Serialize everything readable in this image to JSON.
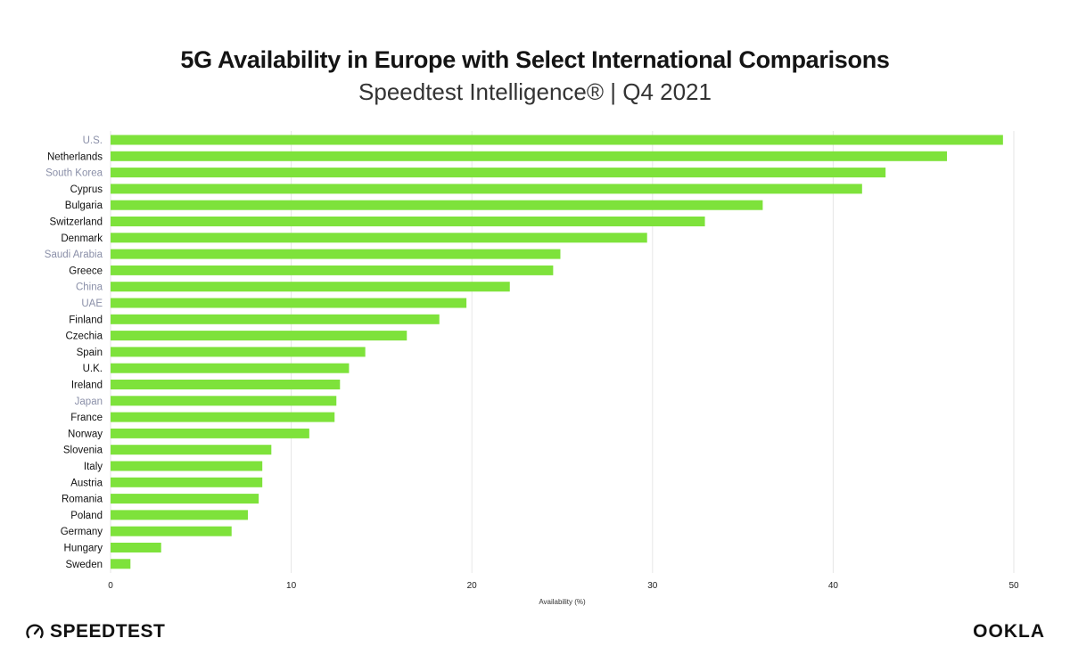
{
  "header": {
    "title": "5G Availability in Europe with Select International Comparisons",
    "subtitle": "Speedtest Intelligence® | Q4 2021"
  },
  "branding": {
    "left_logo_text": "SPEEDTEST",
    "right_logo_text": "OOKLA"
  },
  "colors": {
    "bar": "#7ee23b",
    "europe_label": "#111111",
    "international_label": "#8a8fa8",
    "grid": "#e6e6e6"
  },
  "chart_data": {
    "type": "bar",
    "orientation": "horizontal",
    "title": "5G Availability in Europe with Select International Comparisons",
    "subtitle": "Speedtest Intelligence® | Q4 2021",
    "xlabel": "Availability (%)",
    "ylabel": "",
    "xlim": [
      0,
      50
    ],
    "xticks": [
      0,
      10,
      20,
      30,
      40,
      50
    ],
    "grid": true,
    "categories": [
      "U.S.",
      "Netherlands",
      "South Korea",
      "Cyprus",
      "Bulgaria",
      "Switzerland",
      "Denmark",
      "Saudi Arabia",
      "Greece",
      "China",
      "UAE",
      "Finland",
      "Czechia",
      "Spain",
      "U.K.",
      "Ireland",
      "Japan",
      "France",
      "Norway",
      "Slovenia",
      "Italy",
      "Austria",
      "Romania",
      "Poland",
      "Germany",
      "Hungary",
      "Sweden"
    ],
    "values": [
      49.4,
      46.3,
      42.9,
      41.6,
      36.1,
      32.9,
      29.7,
      24.9,
      24.5,
      22.1,
      19.7,
      18.2,
      16.4,
      14.1,
      13.2,
      12.7,
      12.5,
      12.4,
      11.0,
      8.9,
      8.4,
      8.4,
      8.2,
      7.6,
      6.7,
      2.8,
      1.1
    ],
    "international": [
      "U.S.",
      "South Korea",
      "Saudi Arabia",
      "China",
      "UAE",
      "Japan"
    ]
  }
}
